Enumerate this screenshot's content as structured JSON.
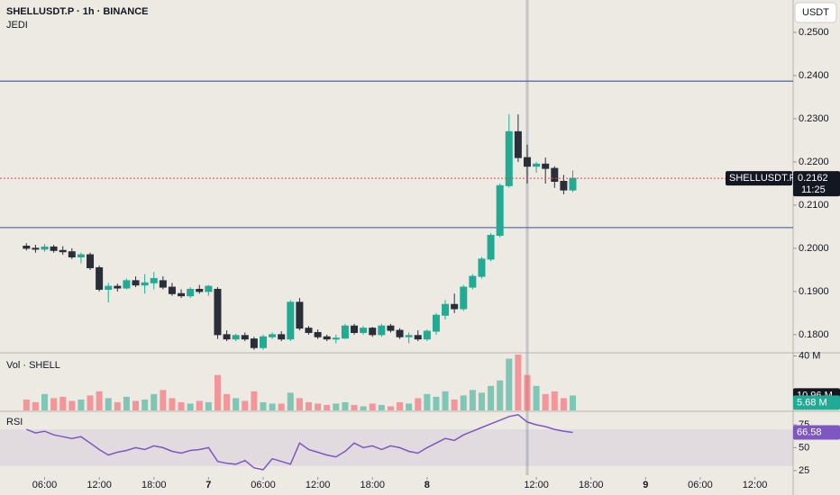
{
  "chart_data": [
    {
      "type": "candlestick",
      "title": "SHELLUSDT.P · 1h · BINANCE",
      "subtitle": "JEDI",
      "unit": "USDT",
      "x": [
        4,
        5,
        6,
        7,
        8,
        9,
        10,
        11,
        12,
        13,
        14,
        15,
        16,
        17,
        18,
        19,
        20,
        21,
        22,
        23,
        24,
        25,
        26,
        27,
        28,
        29,
        30,
        31,
        32,
        33,
        34,
        35,
        36,
        37,
        38,
        39,
        40,
        41,
        42,
        43,
        44,
        45,
        46,
        47,
        48,
        49,
        50,
        51,
        52,
        53,
        54,
        55,
        56,
        57,
        58,
        59,
        60,
        61,
        62,
        63,
        64
      ],
      "open": [
        0.2005,
        0.2,
        0.1998,
        0.2003,
        0.1995,
        0.1992,
        0.198,
        0.1985,
        0.1955,
        0.1905,
        0.1912,
        0.1908,
        0.1925,
        0.1915,
        0.192,
        0.1925,
        0.191,
        0.1895,
        0.189,
        0.1905,
        0.19,
        0.1905,
        0.18,
        0.179,
        0.1798,
        0.179,
        0.177,
        0.1795,
        0.18,
        0.179,
        0.1875,
        0.1815,
        0.1805,
        0.1795,
        0.179,
        0.1792,
        0.182,
        0.1805,
        0.1815,
        0.18,
        0.182,
        0.181,
        0.1795,
        0.1798,
        0.179,
        0.1808,
        0.1845,
        0.187,
        0.186,
        0.191,
        0.1935,
        0.1975,
        0.203,
        0.2145,
        0.227,
        0.221,
        0.219,
        0.2195,
        0.2185,
        0.2155,
        0.2135
      ],
      "high": [
        0.2012,
        0.2008,
        0.201,
        0.2008,
        0.2005,
        0.2,
        0.199,
        0.199,
        0.196,
        0.192,
        0.1918,
        0.193,
        0.1935,
        0.194,
        0.1945,
        0.1935,
        0.192,
        0.1905,
        0.191,
        0.1915,
        0.1915,
        0.191,
        0.181,
        0.1802,
        0.1805,
        0.1795,
        0.18,
        0.1805,
        0.1808,
        0.188,
        0.1885,
        0.182,
        0.1812,
        0.18,
        0.18,
        0.1825,
        0.1825,
        0.182,
        0.1818,
        0.1825,
        0.1825,
        0.1815,
        0.1805,
        0.181,
        0.1812,
        0.185,
        0.188,
        0.1895,
        0.1915,
        0.194,
        0.198,
        0.2035,
        0.215,
        0.231,
        0.231,
        0.224,
        0.22,
        0.221,
        0.219,
        0.217,
        0.218
      ],
      "low": [
        0.1995,
        0.199,
        0.1992,
        0.199,
        0.1985,
        0.1975,
        0.1965,
        0.195,
        0.19,
        0.1875,
        0.19,
        0.1905,
        0.191,
        0.1895,
        0.1905,
        0.1905,
        0.189,
        0.1885,
        0.1885,
        0.1895,
        0.189,
        0.179,
        0.1785,
        0.1785,
        0.1785,
        0.1765,
        0.1765,
        0.179,
        0.1785,
        0.1785,
        0.181,
        0.18,
        0.179,
        0.1785,
        0.178,
        0.179,
        0.18,
        0.18,
        0.1795,
        0.1795,
        0.1805,
        0.179,
        0.178,
        0.1785,
        0.1785,
        0.18,
        0.1835,
        0.185,
        0.1855,
        0.1905,
        0.193,
        0.197,
        0.2025,
        0.214,
        0.22,
        0.215,
        0.2175,
        0.215,
        0.214,
        0.2125,
        0.213
      ],
      "close": [
        0.2,
        0.1998,
        0.2003,
        0.1995,
        0.1992,
        0.198,
        0.1985,
        0.1955,
        0.1905,
        0.1912,
        0.1908,
        0.1925,
        0.1915,
        0.192,
        0.193,
        0.191,
        0.1895,
        0.189,
        0.1905,
        0.19,
        0.1912,
        0.18,
        0.179,
        0.1798,
        0.179,
        0.177,
        0.1795,
        0.18,
        0.179,
        0.1875,
        0.1815,
        0.1805,
        0.1795,
        0.179,
        0.1792,
        0.182,
        0.1805,
        0.1815,
        0.18,
        0.182,
        0.181,
        0.1795,
        0.1798,
        0.179,
        0.1808,
        0.1845,
        0.187,
        0.186,
        0.191,
        0.1935,
        0.1975,
        0.203,
        0.2145,
        0.227,
        0.221,
        0.219,
        0.2195,
        0.2185,
        0.2155,
        0.2135,
        0.2162
      ],
      "up_color": "#22ab94",
      "down_color": "#2a2e39",
      "xlim": [
        1.1,
        88.2
      ],
      "ylim": [
        0.1758,
        0.2575
      ],
      "yticks": [
        {
          "value": 0.18,
          "label": "0.1800"
        },
        {
          "value": 0.19,
          "label": "0.1900"
        },
        {
          "value": 0.2,
          "label": "0.2000"
        },
        {
          "value": 0.21,
          "label": "0.2100"
        },
        {
          "value": 0.22,
          "label": "0.2200"
        },
        {
          "value": 0.23,
          "label": "0.2300"
        },
        {
          "value": 0.24,
          "label": "0.2400"
        },
        {
          "value": 0.25,
          "label": "0.2500"
        }
      ],
      "levels": [
        {
          "value": 0.2387,
          "color": "#5b6db0"
        },
        {
          "value": 0.2048,
          "color": "#5b6db0"
        }
      ],
      "last_price": {
        "name": "SHELLUSDT.P",
        "value": 0.2162,
        "countdown": "11:25",
        "color": "#e0474c"
      }
    },
    {
      "type": "bar",
      "title": "Vol · SHELL",
      "values": [
        8,
        6,
        12,
        9,
        10,
        7,
        8,
        11,
        14,
        9,
        6,
        10,
        7,
        8,
        12,
        15,
        9,
        6,
        5,
        7,
        6,
        26,
        12,
        9,
        7,
        14,
        6,
        5,
        5,
        13,
        9,
        6,
        5,
        4,
        5,
        6,
        4,
        3,
        5,
        4,
        3,
        6,
        5,
        9,
        12,
        10,
        14,
        8,
        11,
        15,
        13,
        18,
        22,
        38,
        41,
        26,
        18,
        12,
        14,
        9,
        10.96
      ],
      "up_color": "#22ab94",
      "down_color": "#f7525f",
      "ylim": [
        0,
        41
      ],
      "yticks": [
        {
          "value": 40,
          "label": "40 M"
        }
      ],
      "markers": [
        {
          "value": 10.96,
          "label": "10.96 M",
          "color": "#131722"
        },
        {
          "value": 5.68,
          "label": "5.68 M",
          "color": "#22ab94"
        }
      ]
    },
    {
      "type": "line",
      "title": "RSI",
      "color": "#7e57c2",
      "values": [
        70,
        66,
        68,
        64,
        62,
        60,
        62,
        55,
        48,
        42,
        45,
        47,
        50,
        48,
        52,
        50,
        46,
        44,
        47,
        48,
        50,
        35,
        33,
        32,
        36,
        28,
        26,
        38,
        35,
        32,
        55,
        48,
        45,
        42,
        40,
        46,
        55,
        50,
        52,
        48,
        52,
        50,
        46,
        44,
        50,
        55,
        60,
        58,
        64,
        68,
        72,
        76,
        80,
        84,
        86,
        78,
        75,
        73,
        70,
        68,
        66.58
      ],
      "ylim": [
        20,
        88.7
      ],
      "yticks": [
        25,
        50,
        75
      ],
      "band": [
        30,
        70
      ],
      "xticks": [
        {
          "value": 6,
          "label": "06:00"
        },
        {
          "value": 12,
          "label": "12:00"
        },
        {
          "value": 18,
          "label": "18:00"
        },
        {
          "value": 24,
          "label": "7"
        },
        {
          "value": 30,
          "label": "06:00"
        },
        {
          "value": 36,
          "label": "12:00"
        },
        {
          "value": 42,
          "label": "18:00"
        },
        {
          "value": 48,
          "label": "8"
        },
        {
          "value": 60,
          "label": "12:00"
        },
        {
          "value": 66,
          "label": "18:00"
        },
        {
          "value": 72,
          "label": "9"
        },
        {
          "value": 78,
          "label": "06:00"
        },
        {
          "value": 84,
          "label": "12:00"
        }
      ]
    }
  ]
}
